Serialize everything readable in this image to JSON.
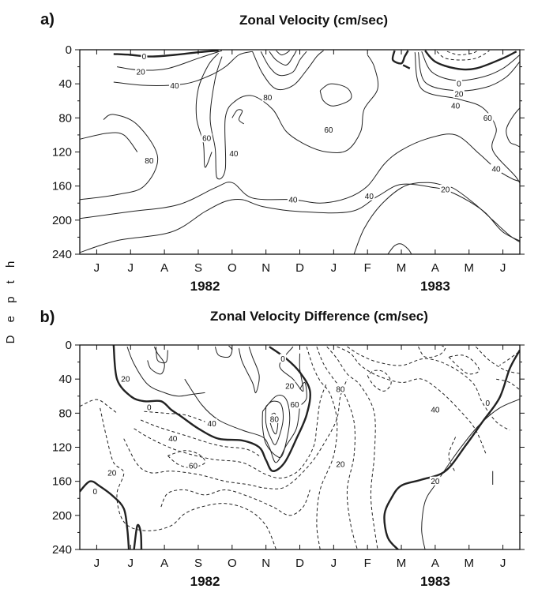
{
  "figure": {
    "ylabel": "D e p t h"
  },
  "chart_data": [
    {
      "type": "contour",
      "panel_label": "a)",
      "title": "Zonal Velocity (cm/sec)",
      "xlabel": "",
      "ylabel": "Depth",
      "x_ticks": [
        "J",
        "J",
        "A",
        "S",
        "O",
        "N",
        "D",
        "J",
        "F",
        "M",
        "A",
        "M",
        "J"
      ],
      "years": [
        "1982",
        "1983"
      ],
      "y_ticks": [
        "0",
        "40",
        "80",
        "120",
        "160",
        "200",
        "240"
      ],
      "ylim": [
        240,
        0
      ],
      "grid": false,
      "contour_levels": [
        0,
        20,
        40,
        60,
        80
      ],
      "contour_labels": [
        {
          "text": "0",
          "month": 1.4,
          "depth": 8
        },
        {
          "text": "20",
          "month": 1.3,
          "depth": 26
        },
        {
          "text": "40",
          "month": 2.3,
          "depth": 42
        },
        {
          "text": "80",
          "month": 1.55,
          "depth": 130
        },
        {
          "text": "60",
          "month": 3.25,
          "depth": 104
        },
        {
          "text": "40",
          "month": 4.05,
          "depth": 122
        },
        {
          "text": "80",
          "month": 5.05,
          "depth": 56
        },
        {
          "text": "60",
          "month": 6.85,
          "depth": 94
        },
        {
          "text": "40",
          "month": 5.8,
          "depth": 176
        },
        {
          "text": "40",
          "month": 8.05,
          "depth": 172
        },
        {
          "text": "20",
          "month": 10.3,
          "depth": 164
        },
        {
          "text": "40",
          "month": 11.8,
          "depth": 140
        },
        {
          "text": "60",
          "month": 11.55,
          "depth": 80
        },
        {
          "text": "0",
          "month": 10.7,
          "depth": 40
        },
        {
          "text": "20",
          "month": 10.7,
          "depth": 52
        },
        {
          "text": "40",
          "month": 10.6,
          "depth": 66
        }
      ]
    },
    {
      "type": "contour",
      "panel_label": "b)",
      "title": "Zonal Velocity Difference (cm/sec)",
      "xlabel": "",
      "ylabel": "Depth",
      "x_ticks": [
        "J",
        "J",
        "A",
        "S",
        "O",
        "N",
        "D",
        "J",
        "F",
        "M",
        "A",
        "M",
        "J"
      ],
      "years": [
        "1982",
        "1983"
      ],
      "y_ticks": [
        "0",
        "40",
        "80",
        "120",
        "160",
        "200",
        "240"
      ],
      "ylim": [
        240,
        0
      ],
      "grid": false,
      "line_styles": {
        "positive": "solid",
        "zero": "bold solid",
        "negative": "dashed"
      },
      "contour_labels": [
        {
          "text": "20",
          "month": 0.85,
          "depth": 40
        },
        {
          "text": "0",
          "month": 1.55,
          "depth": 73
        },
        {
          "text": "40",
          "month": 2.25,
          "depth": 110
        },
        {
          "text": "40",
          "month": 3.4,
          "depth": 92
        },
        {
          "text": "60",
          "month": 2.85,
          "depth": 142
        },
        {
          "text": "20",
          "month": 0.45,
          "depth": 150
        },
        {
          "text": "0",
          "month": -0.05,
          "depth": 172
        },
        {
          "text": "0",
          "month": 5.5,
          "depth": 16
        },
        {
          "text": "20",
          "month": 5.7,
          "depth": 48
        },
        {
          "text": "80",
          "month": 5.25,
          "depth": 87
        },
        {
          "text": "60",
          "month": 5.85,
          "depth": 70
        },
        {
          "text": "80",
          "month": 7.2,
          "depth": 52
        },
        {
          "text": "20",
          "month": 7.2,
          "depth": 140
        },
        {
          "text": "40",
          "month": 10.0,
          "depth": 76
        },
        {
          "text": "20",
          "month": 10.0,
          "depth": 160
        },
        {
          "text": "0",
          "month": 11.55,
          "depth": 68
        }
      ]
    }
  ]
}
